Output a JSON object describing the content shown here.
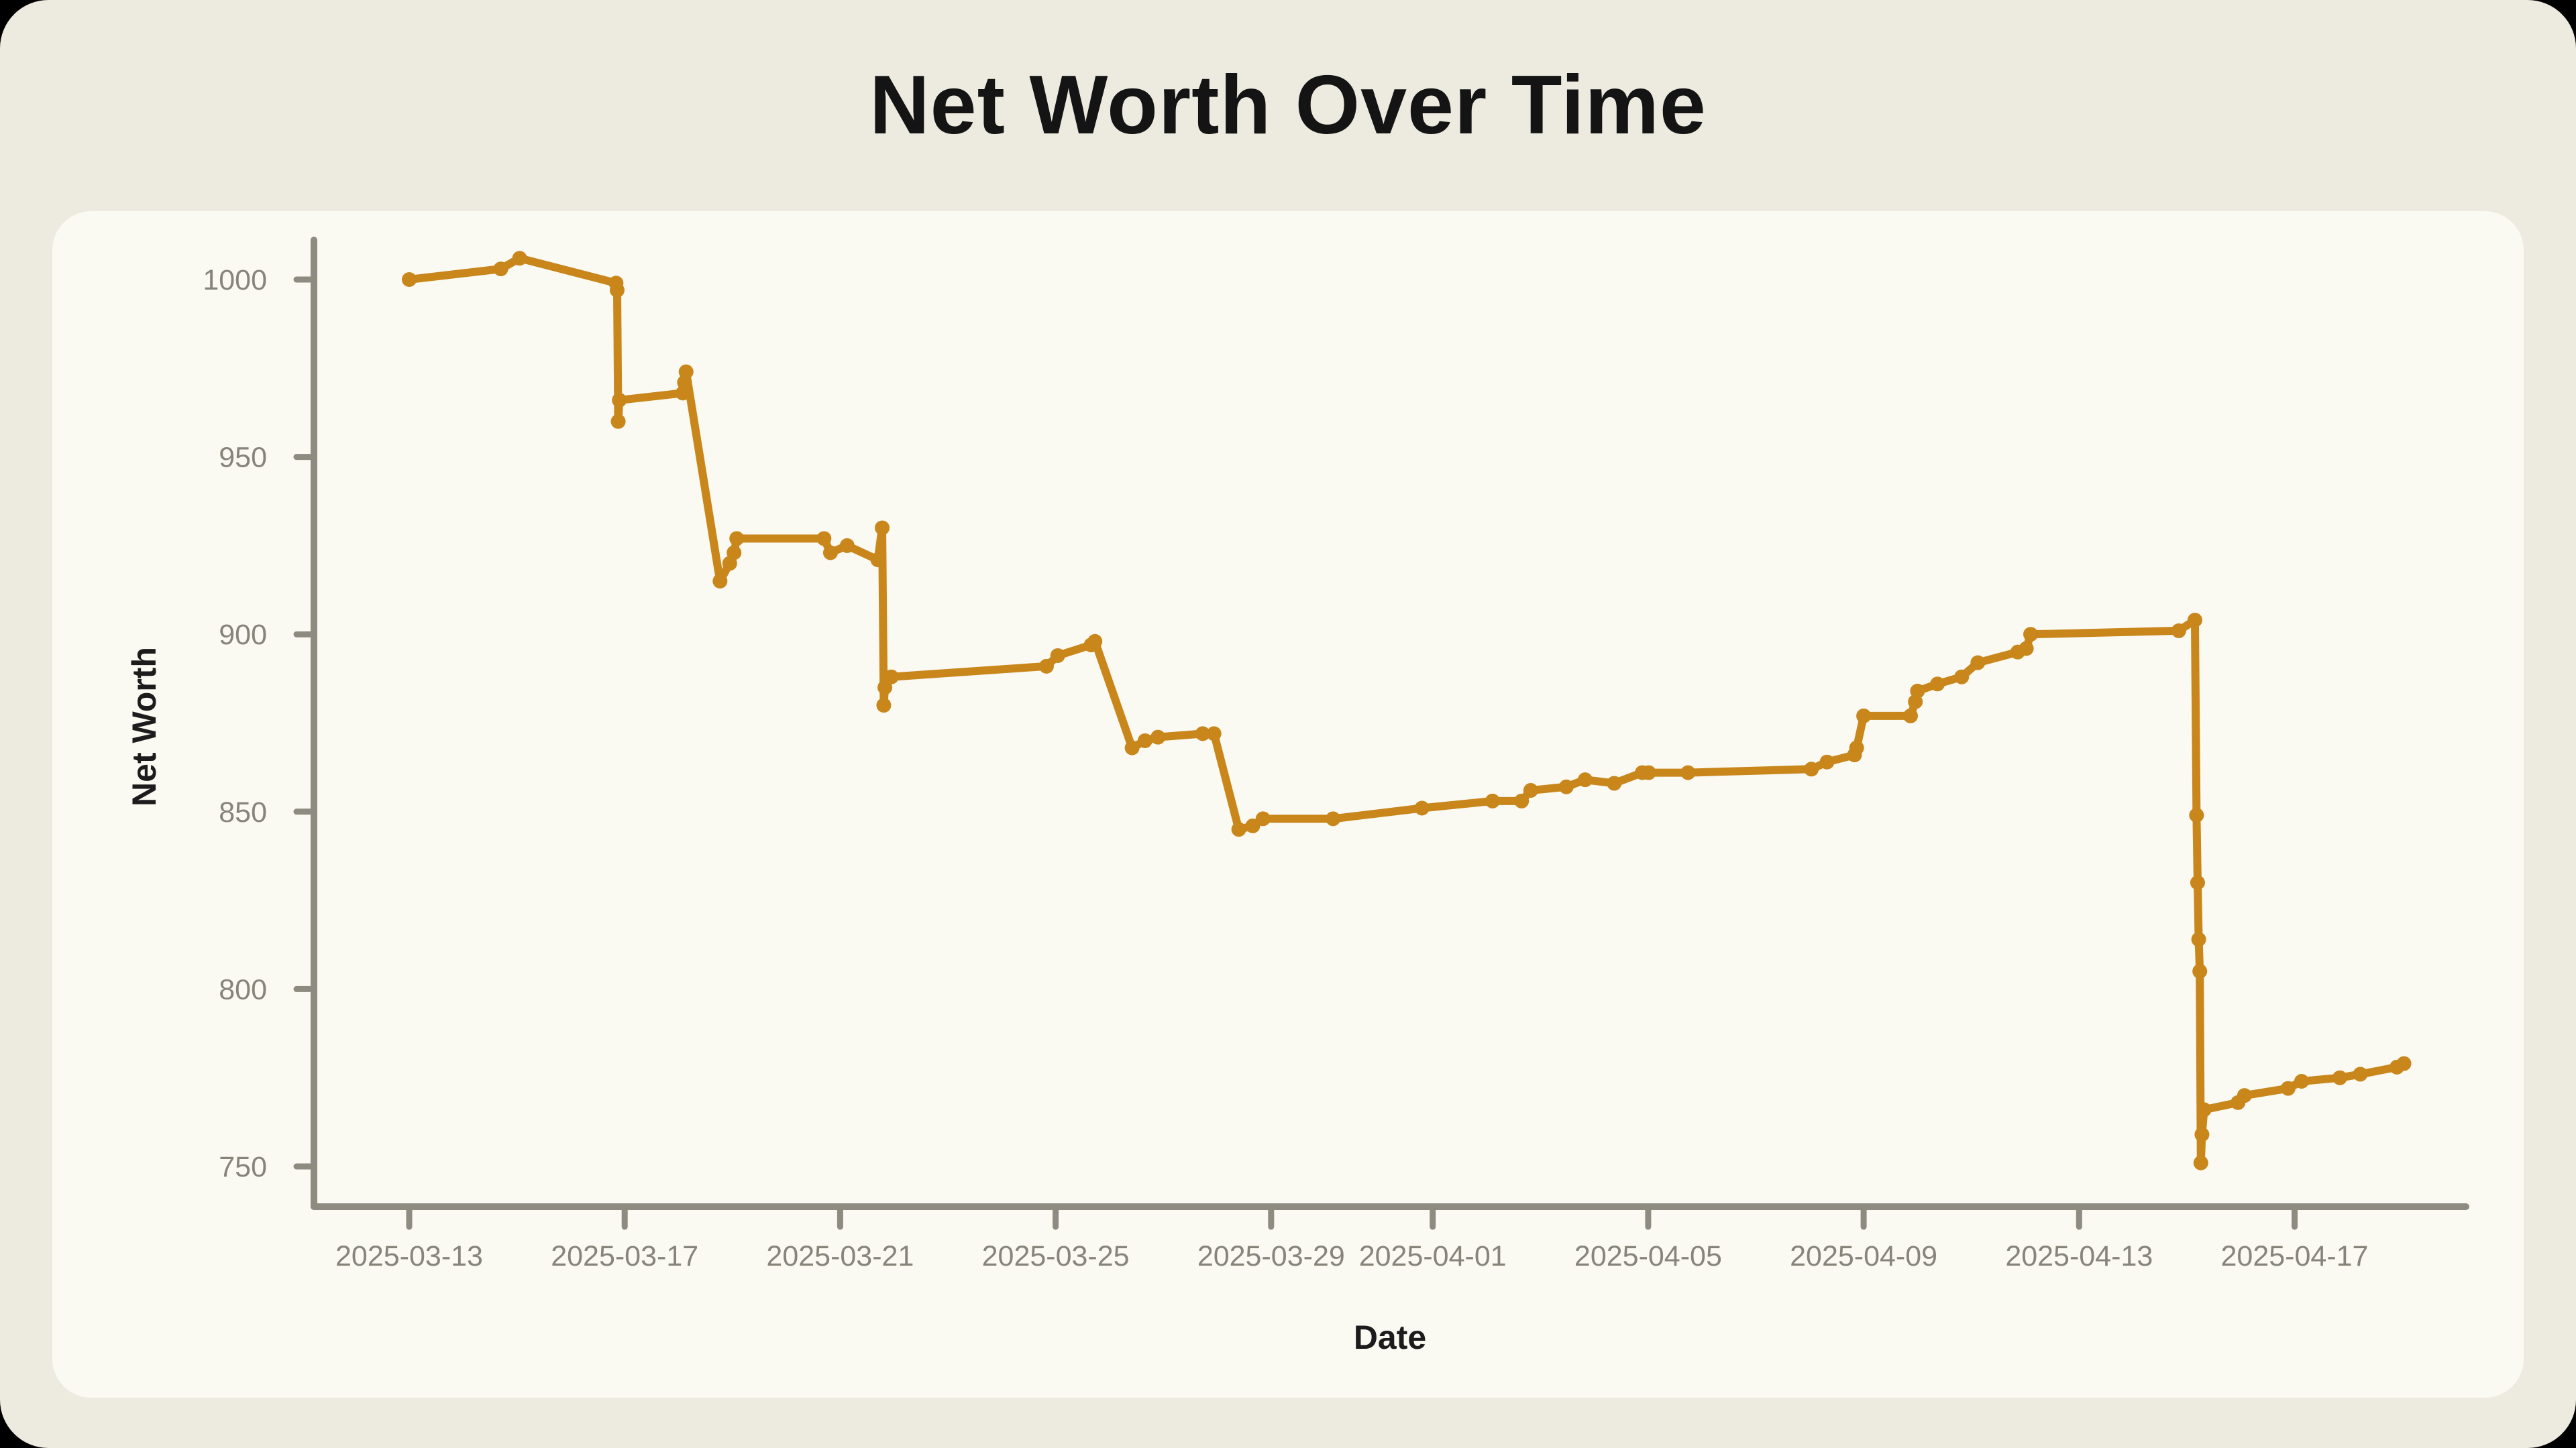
{
  "page": {
    "outer_background": "#000000",
    "window_background": "#EDEBE0",
    "card_background": "#FAF9F2"
  },
  "chart_data": {
    "type": "line",
    "title": "Net Worth Over Time",
    "xlabel": "Date",
    "ylabel": "Net Worth",
    "legend": null,
    "grid": false,
    "line_color": "#C8861B",
    "axis_color": "#8E8C80",
    "tick_label_color": "#87857A",
    "title_color": "#141414",
    "ylim": [
      740,
      1010
    ],
    "xlim_days": [
      -0.5,
      38.2
    ],
    "y_ticks": [
      1000,
      950,
      900,
      850,
      800,
      750
    ],
    "x_ticks": [
      {
        "label": "2025-03-13",
        "t": 0
      },
      {
        "label": "2025-03-17",
        "t": 4
      },
      {
        "label": "2025-03-21",
        "t": 8
      },
      {
        "label": "2025-03-25",
        "t": 12
      },
      {
        "label": "2025-03-29",
        "t": 16
      },
      {
        "label": "2025-04-01",
        "t": 19
      },
      {
        "label": "2025-04-05",
        "t": 23
      },
      {
        "label": "2025-04-09",
        "t": 27
      },
      {
        "label": "2025-04-13",
        "t": 31
      },
      {
        "label": "2025-04-17",
        "t": 35
      }
    ],
    "series": [
      {
        "name": "Net Worth",
        "points": [
          {
            "date": "2025-03-13",
            "t": 0.0,
            "v": 1000
          },
          {
            "date": "2025-03-15",
            "t": 1.7,
            "v": 1003
          },
          {
            "date": "2025-03-15",
            "t": 2.05,
            "v": 1006
          },
          {
            "date": "2025-03-17",
            "t": 3.84,
            "v": 999
          },
          {
            "date": "2025-03-17",
            "t": 3.86,
            "v": 997
          },
          {
            "date": "2025-03-17",
            "t": 3.88,
            "v": 960
          },
          {
            "date": "2025-03-17",
            "t": 3.9,
            "v": 966
          },
          {
            "date": "2025-03-18",
            "t": 5.08,
            "v": 968
          },
          {
            "date": "2025-03-18",
            "t": 5.11,
            "v": 971
          },
          {
            "date": "2025-03-18",
            "t": 5.14,
            "v": 974
          },
          {
            "date": "2025-03-19",
            "t": 5.77,
            "v": 915
          },
          {
            "date": "2025-03-19",
            "t": 5.95,
            "v": 920
          },
          {
            "date": "2025-03-19",
            "t": 6.03,
            "v": 923
          },
          {
            "date": "2025-03-19",
            "t": 6.08,
            "v": 927
          },
          {
            "date": "2025-03-21",
            "t": 7.7,
            "v": 927
          },
          {
            "date": "2025-03-21",
            "t": 7.82,
            "v": 923
          },
          {
            "date": "2025-03-21",
            "t": 8.13,
            "v": 925
          },
          {
            "date": "2025-03-22",
            "t": 8.7,
            "v": 921
          },
          {
            "date": "2025-03-22",
            "t": 8.78,
            "v": 930
          },
          {
            "date": "2025-03-22",
            "t": 8.81,
            "v": 880
          },
          {
            "date": "2025-03-22",
            "t": 8.83,
            "v": 885
          },
          {
            "date": "2025-03-22",
            "t": 8.95,
            "v": 888
          },
          {
            "date": "2025-03-25",
            "t": 11.83,
            "v": 891
          },
          {
            "date": "2025-03-25",
            "t": 12.04,
            "v": 894
          },
          {
            "date": "2025-03-26",
            "t": 12.66,
            "v": 897
          },
          {
            "date": "2025-03-26",
            "t": 12.73,
            "v": 898
          },
          {
            "date": "2025-03-26",
            "t": 13.42,
            "v": 868
          },
          {
            "date": "2025-03-27",
            "t": 13.66,
            "v": 870
          },
          {
            "date": "2025-03-27",
            "t": 13.9,
            "v": 871
          },
          {
            "date": "2025-03-28",
            "t": 14.73,
            "v": 872
          },
          {
            "date": "2025-03-28",
            "t": 14.94,
            "v": 872
          },
          {
            "date": "2025-03-28",
            "t": 15.4,
            "v": 845
          },
          {
            "date": "2025-03-29",
            "t": 15.66,
            "v": 846
          },
          {
            "date": "2025-03-29",
            "t": 15.85,
            "v": 848
          },
          {
            "date": "2025-03-30",
            "t": 17.15,
            "v": 848
          },
          {
            "date": "2025-04-01",
            "t": 18.8,
            "v": 851
          },
          {
            "date": "2025-04-02",
            "t": 20.11,
            "v": 853
          },
          {
            "date": "2025-04-03",
            "t": 20.65,
            "v": 853
          },
          {
            "date": "2025-04-03",
            "t": 20.82,
            "v": 856
          },
          {
            "date": "2025-04-03",
            "t": 21.48,
            "v": 857
          },
          {
            "date": "2025-04-04",
            "t": 21.83,
            "v": 859
          },
          {
            "date": "2025-04-04",
            "t": 22.37,
            "v": 858
          },
          {
            "date": "2025-04-05",
            "t": 22.89,
            "v": 861
          },
          {
            "date": "2025-04-05",
            "t": 23.01,
            "v": 861
          },
          {
            "date": "2025-04-06",
            "t": 23.74,
            "v": 861
          },
          {
            "date": "2025-04-08",
            "t": 26.03,
            "v": 862
          },
          {
            "date": "2025-04-08",
            "t": 26.32,
            "v": 864
          },
          {
            "date": "2025-04-09",
            "t": 26.83,
            "v": 866
          },
          {
            "date": "2025-04-09",
            "t": 26.87,
            "v": 868
          },
          {
            "date": "2025-04-09",
            "t": 27.0,
            "v": 877
          },
          {
            "date": "2025-04-10",
            "t": 27.87,
            "v": 877
          },
          {
            "date": "2025-04-10",
            "t": 27.96,
            "v": 881
          },
          {
            "date": "2025-04-10",
            "t": 28.0,
            "v": 884
          },
          {
            "date": "2025-04-10",
            "t": 28.37,
            "v": 886
          },
          {
            "date": "2025-04-11",
            "t": 28.82,
            "v": 888
          },
          {
            "date": "2025-04-11",
            "t": 29.12,
            "v": 892
          },
          {
            "date": "2025-04-12",
            "t": 29.86,
            "v": 895
          },
          {
            "date": "2025-04-12",
            "t": 30.02,
            "v": 896
          },
          {
            "date": "2025-04-12",
            "t": 30.1,
            "v": 900
          },
          {
            "date": "2025-04-15",
            "t": 32.85,
            "v": 901
          },
          {
            "date": "2025-04-15",
            "t": 33.15,
            "v": 904
          },
          {
            "date": "2025-04-15",
            "t": 33.18,
            "v": 849
          },
          {
            "date": "2025-04-15",
            "t": 33.2,
            "v": 830
          },
          {
            "date": "2025-04-15",
            "t": 33.22,
            "v": 814
          },
          {
            "date": "2025-04-15",
            "t": 33.24,
            "v": 805
          },
          {
            "date": "2025-04-15",
            "t": 33.26,
            "v": 751
          },
          {
            "date": "2025-04-15",
            "t": 33.28,
            "v": 759
          },
          {
            "date": "2025-04-15",
            "t": 33.32,
            "v": 766
          },
          {
            "date": "2025-04-16",
            "t": 33.95,
            "v": 768
          },
          {
            "date": "2025-04-16",
            "t": 34.07,
            "v": 770
          },
          {
            "date": "2025-04-17",
            "t": 34.88,
            "v": 772
          },
          {
            "date": "2025-04-17",
            "t": 35.13,
            "v": 774
          },
          {
            "date": "2025-04-18",
            "t": 35.84,
            "v": 775
          },
          {
            "date": "2025-04-18",
            "t": 36.22,
            "v": 776
          },
          {
            "date": "2025-04-19",
            "t": 36.9,
            "v": 778
          },
          {
            "date": "2025-04-19",
            "t": 37.03,
            "v": 779
          }
        ]
      }
    ]
  }
}
